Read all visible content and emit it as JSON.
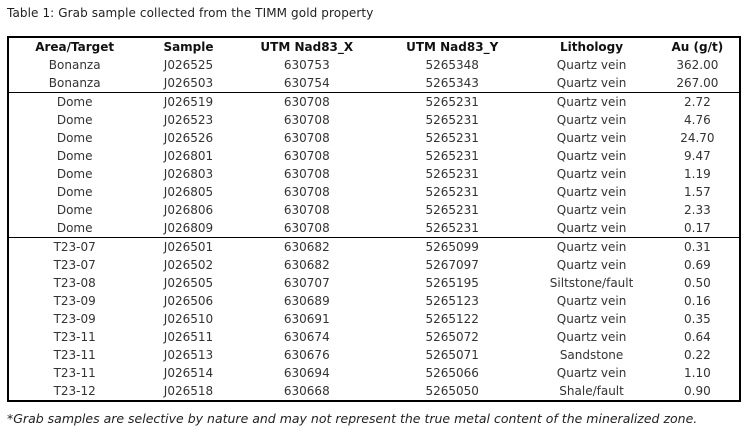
{
  "page": {
    "caption": "Table 1: Grab sample collected from the TIMM gold property",
    "footnote": "*Grab samples are selective by nature and may not represent the true metal content of the mineralized zone."
  },
  "colors": {
    "background": "#ffffff",
    "border": "#000000",
    "header_text": "#111111",
    "body_text": "#333333"
  },
  "table": {
    "columns": [
      "Area/Target",
      "Sample",
      "UTM Nad83_X",
      "UTM Nad83_Y",
      "Lithology",
      "Au (g/t)"
    ],
    "groups": [
      {
        "name": "Bonanza",
        "rows": [
          [
            "Bonanza",
            "J026525",
            "630753",
            "5265348",
            "Quartz vein",
            "362.00"
          ],
          [
            "Bonanza",
            "J026503",
            "630754",
            "5265343",
            "Quartz vein",
            "267.00"
          ]
        ]
      },
      {
        "name": "Dome",
        "rows": [
          [
            "Dome",
            "J026519",
            "630708",
            "5265231",
            "Quartz vein",
            "2.72"
          ],
          [
            "Dome",
            "J026523",
            "630708",
            "5265231",
            "Quartz vein",
            "4.76"
          ],
          [
            "Dome",
            "J026526",
            "630708",
            "5265231",
            "Quartz vein",
            "24.70"
          ],
          [
            "Dome",
            "J026801",
            "630708",
            "5265231",
            "Quartz vein",
            "9.47"
          ],
          [
            "Dome",
            "J026803",
            "630708",
            "5265231",
            "Quartz vein",
            "1.19"
          ],
          [
            "Dome",
            "J026805",
            "630708",
            "5265231",
            "Quartz vein",
            "1.57"
          ],
          [
            "Dome",
            "J026806",
            "630708",
            "5265231",
            "Quartz vein",
            "2.33"
          ],
          [
            "Dome",
            "J026809",
            "630708",
            "5265231",
            "Quartz vein",
            "0.17"
          ]
        ]
      },
      {
        "name": "T23",
        "rows": [
          [
            "T23-07",
            "J026501",
            "630682",
            "5265099",
            "Quartz vein",
            "0.31"
          ],
          [
            "T23-07",
            "J026502",
            "630682",
            "5267097",
            "Quartz vein",
            "0.69"
          ],
          [
            "T23-08",
            "J026505",
            "630707",
            "5265195",
            "Siltstone/fault",
            "0.50"
          ],
          [
            "T23-09",
            "J026506",
            "630689",
            "5265123",
            "Quartz vein",
            "0.16"
          ],
          [
            "T23-09",
            "J026510",
            "630691",
            "5265122",
            "Quartz vein",
            "0.35"
          ],
          [
            "T23-11",
            "J026511",
            "630674",
            "5265072",
            "Quartz vein",
            "0.64"
          ],
          [
            "T23-11",
            "J026513",
            "630676",
            "5265071",
            "Sandstone",
            "0.22"
          ],
          [
            "T23-11",
            "J026514",
            "630694",
            "5265066",
            "Quartz vein",
            "1.10"
          ],
          [
            "T23-12",
            "J026518",
            "630668",
            "5265050",
            "Shale/fault",
            "0.90"
          ]
        ]
      }
    ]
  }
}
